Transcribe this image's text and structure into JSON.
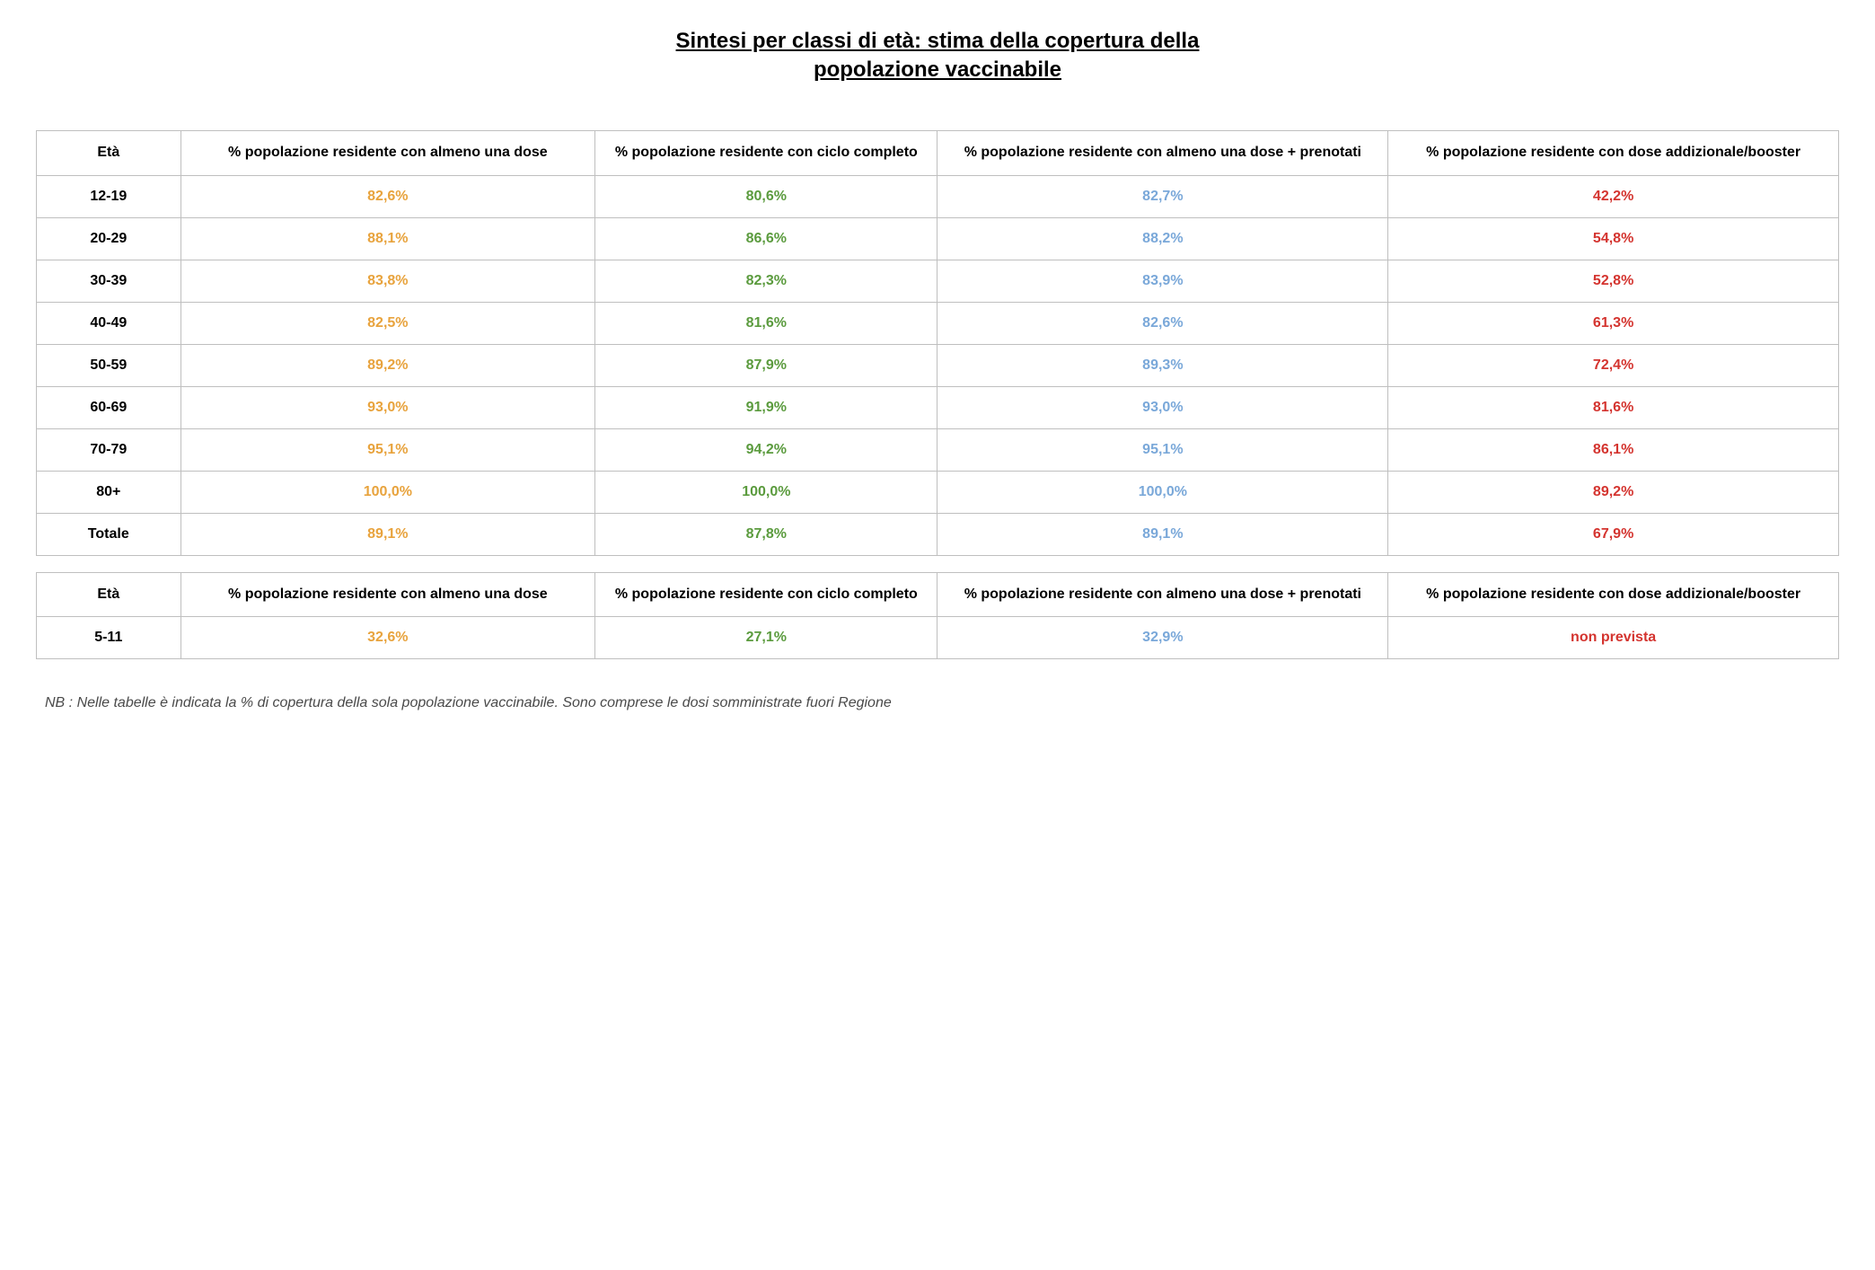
{
  "title_line1": "Sintesi per classi di età: stima della copertura della",
  "title_line2": "popolazione vaccinabile",
  "columns": {
    "age": "Età",
    "c1": "% popolazione residente con almeno una dose",
    "c2": "% popolazione residente con ciclo completo",
    "c3": "% popolazione residente con almeno una dose + prenotati",
    "c4": "% popolazione residente con dose addizionale/booster"
  },
  "colors": {
    "c1": "#e8a33d",
    "c2": "#5b9b3e",
    "c3": "#7aa8d9",
    "c4": "#d4342f"
  },
  "main_rows": [
    {
      "age": "12-19",
      "c1": "82,6%",
      "c2": "80,6%",
      "c3": "82,7%",
      "c4": "42,2%"
    },
    {
      "age": "20-29",
      "c1": "88,1%",
      "c2": "86,6%",
      "c3": "88,2%",
      "c4": "54,8%"
    },
    {
      "age": "30-39",
      "c1": "83,8%",
      "c2": "82,3%",
      "c3": "83,9%",
      "c4": "52,8%"
    },
    {
      "age": "40-49",
      "c1": "82,5%",
      "c2": "81,6%",
      "c3": "82,6%",
      "c4": "61,3%"
    },
    {
      "age": "50-59",
      "c1": "89,2%",
      "c2": "87,9%",
      "c3": "89,3%",
      "c4": "72,4%"
    },
    {
      "age": "60-69",
      "c1": "93,0%",
      "c2": "91,9%",
      "c3": "93,0%",
      "c4": "81,6%"
    },
    {
      "age": "70-79",
      "c1": "95,1%",
      "c2": "94,2%",
      "c3": "95,1%",
      "c4": "86,1%"
    },
    {
      "age": "80+",
      "c1": "100,0%",
      "c2": "100,0%",
      "c3": "100,0%",
      "c4": "89,2%"
    },
    {
      "age": "Totale",
      "c1": "89,1%",
      "c2": "87,8%",
      "c3": "89,1%",
      "c4": "67,9%"
    }
  ],
  "sub_rows": [
    {
      "age": "5-11",
      "c1": "32,6%",
      "c2": "27,1%",
      "c3": "32,9%",
      "c4": "non prevista"
    }
  ],
  "footnote": "NB : Nelle tabelle è indicata la % di copertura della sola popolazione vaccinabile. Sono comprese le dosi somministrate fuori Regione"
}
